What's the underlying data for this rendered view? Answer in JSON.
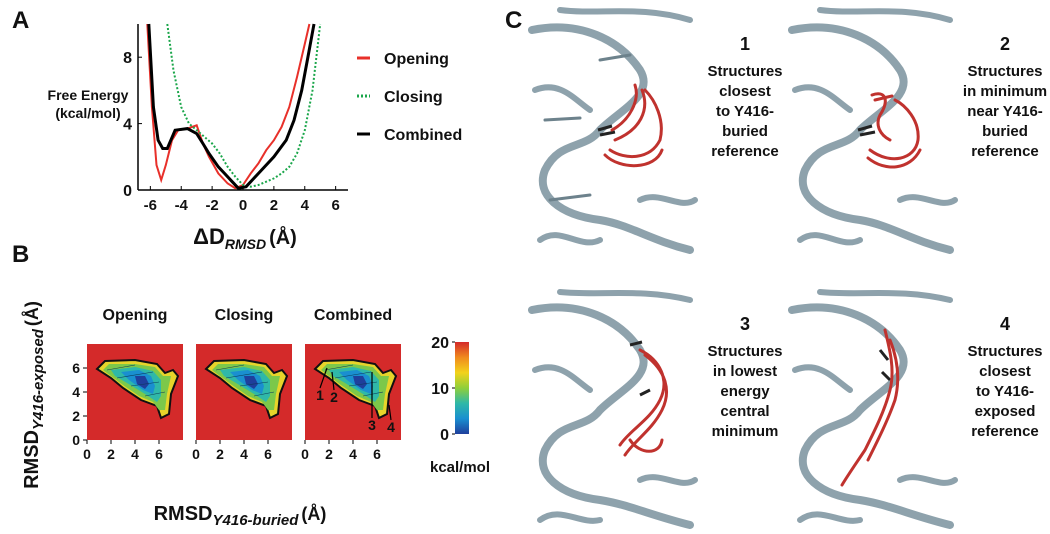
{
  "panel_labels": [
    "A",
    "B",
    "C"
  ],
  "chart_data": [
    {
      "type": "line",
      "ylabel": [
        "Free Energy",
        "(kcal/mol)"
      ],
      "xlabel": {
        "main": "ΔD",
        "sub": "RMSD",
        "unit": "(Å)"
      },
      "xlim": [
        -6.8,
        6.8
      ],
      "xticks": [
        -6,
        -4,
        -2,
        0,
        2,
        4,
        6
      ],
      "ylim": [
        0,
        10
      ],
      "yticks": [
        0,
        4,
        8
      ],
      "series": [
        {
          "name": "Opening",
          "color": "#e8302a",
          "dash": "solid",
          "x": [
            -6.2,
            -5.9,
            -5.6,
            -5.3,
            -5,
            -4.6,
            -4.2,
            -3.6,
            -3.0,
            -2.6,
            -2.2,
            -1.6,
            -1,
            -0.5,
            0,
            0.5,
            1,
            1.5,
            2,
            2.5,
            3,
            3.5,
            4,
            4.3
          ],
          "values": [
            10,
            5,
            1.5,
            0.6,
            1.5,
            3.0,
            3.6,
            3.7,
            3.9,
            2.8,
            2.0,
            1.0,
            0.4,
            0.1,
            0.3,
            1.0,
            1.6,
            2.4,
            3.0,
            3.8,
            5,
            6.8,
            8.8,
            10
          ]
        },
        {
          "name": "Closing",
          "color": "#1aa64a",
          "dash": "dotted",
          "x": [
            -4.9,
            -4.5,
            -4,
            -3.5,
            -3,
            -2.5,
            -2,
            -1.5,
            -1,
            -0.5,
            0,
            0.5,
            1,
            1.5,
            2,
            2.5,
            3,
            3.5,
            4,
            4.5,
            5
          ],
          "values": [
            10,
            7.2,
            5.0,
            4.0,
            3.6,
            3.2,
            2.8,
            2.2,
            1.4,
            0.8,
            0.3,
            0.2,
            0.3,
            0.5,
            0.7,
            1.0,
            1.4,
            2.2,
            3.6,
            6.0,
            10
          ]
        },
        {
          "name": "Combined",
          "color": "#000000",
          "dash": "solid",
          "x": [
            -6.1,
            -5.8,
            -5.5,
            -5.2,
            -4.9,
            -4.4,
            -3.6,
            -3.0,
            -2.6,
            -2.2,
            -1.6,
            -1.2,
            -0.7,
            -0.3,
            0.2,
            0.6,
            1.2,
            2,
            2.8,
            3.3,
            3.8,
            4.2,
            4.6
          ],
          "values": [
            10,
            5,
            3.0,
            2.5,
            2.5,
            3.6,
            3.7,
            3.4,
            2.8,
            2.2,
            1.4,
            1.0,
            0.5,
            0.1,
            0.2,
            0.6,
            1.2,
            2.0,
            3.0,
            4.2,
            6.0,
            8.0,
            10
          ]
        }
      ]
    },
    {
      "type": "heatmap",
      "maps": [
        {
          "title": "Opening"
        },
        {
          "title": "Closing"
        },
        {
          "title": "Combined",
          "annotations": [
            "1",
            "2",
            "3",
            "4"
          ]
        }
      ],
      "xlim": [
        0,
        8
      ],
      "xticks": [
        0,
        2,
        4,
        6
      ],
      "ylim": [
        0,
        8
      ],
      "yticks": [
        0,
        2,
        4,
        6
      ],
      "xlabel": {
        "main": "RMSD",
        "sub": "Y416-buried",
        "unit": "(Å)"
      },
      "ylabel": {
        "main": "RMSD",
        "sub": "Y416-exposed",
        "unit": "(Å)"
      },
      "background": "#d42a2a",
      "colorbar": {
        "lim": [
          0,
          20
        ],
        "ticks": [
          0,
          10,
          20
        ],
        "label": "kcal/mol",
        "colors": [
          "#1f3f9c",
          "#1a8fd0",
          "#2fb8a8",
          "#8fcf3a",
          "#f2d21a",
          "#f08a1e",
          "#d42a2a"
        ]
      }
    }
  ],
  "structures": [
    {
      "number": "1",
      "caption": [
        "Structures",
        "closest",
        "to Y416-",
        "buried",
        "reference"
      ]
    },
    {
      "number": "2",
      "caption": [
        "Structures",
        "in minimum",
        "near Y416-",
        "buried",
        "reference"
      ]
    },
    {
      "number": "3",
      "caption": [
        "Structures",
        "in lowest",
        "energy",
        "central",
        "minimum"
      ]
    },
    {
      "number": "4",
      "caption": [
        "Structures",
        "closest",
        "to Y416-",
        "exposed",
        "reference"
      ]
    }
  ]
}
